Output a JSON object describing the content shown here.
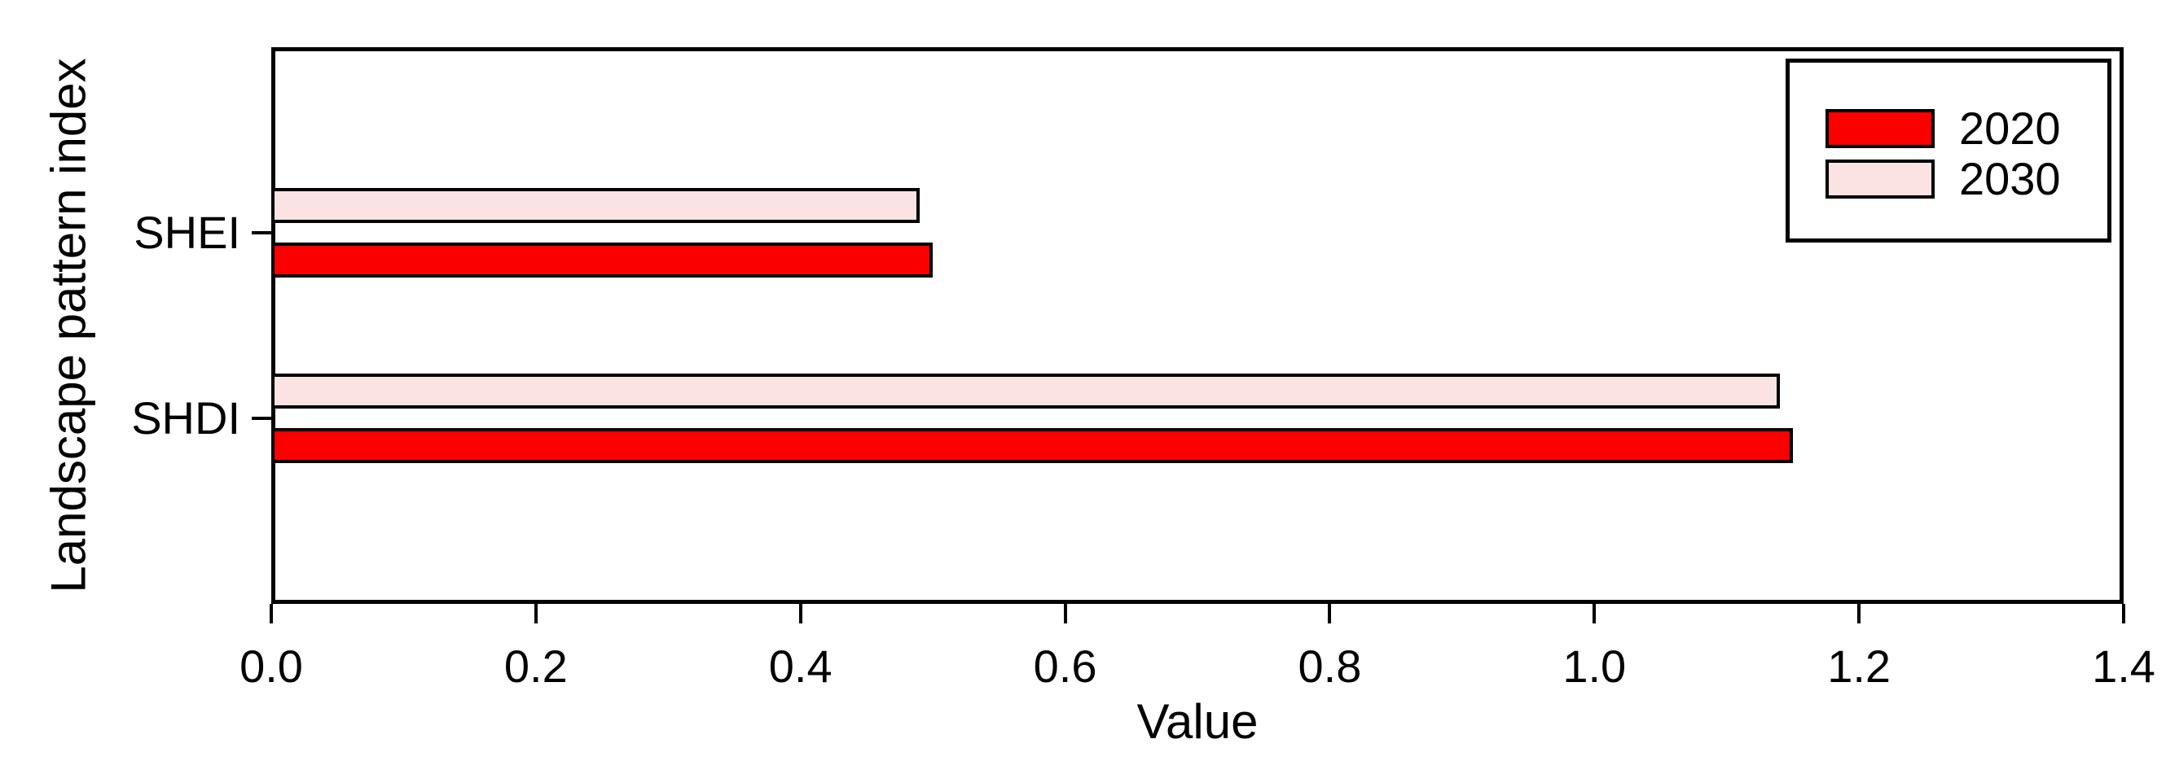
{
  "chart_data": {
    "type": "bar",
    "orientation": "horizontal",
    "title": "",
    "xlabel": "Value",
    "ylabel": "Landscape pattern index",
    "categories": [
      "SHEI",
      "SHDI"
    ],
    "series": [
      {
        "name": "2020",
        "color": "#fb0000",
        "values": [
          0.5,
          1.15
        ]
      },
      {
        "name": "2030",
        "color": "#fbe3e3",
        "values": [
          0.49,
          1.14
        ]
      }
    ],
    "xlim": [
      0.0,
      1.4
    ],
    "x_ticks": [
      "0.0",
      "0.2",
      "0.4",
      "0.6",
      "0.8",
      "1.0",
      "1.2",
      "1.4"
    ],
    "grid": false,
    "legend": {
      "position": "top-right",
      "entries": [
        "2020",
        "2030"
      ]
    },
    "axis_color": "#000000",
    "bar_border_color": "#000000",
    "background_color": "#ffffff"
  }
}
